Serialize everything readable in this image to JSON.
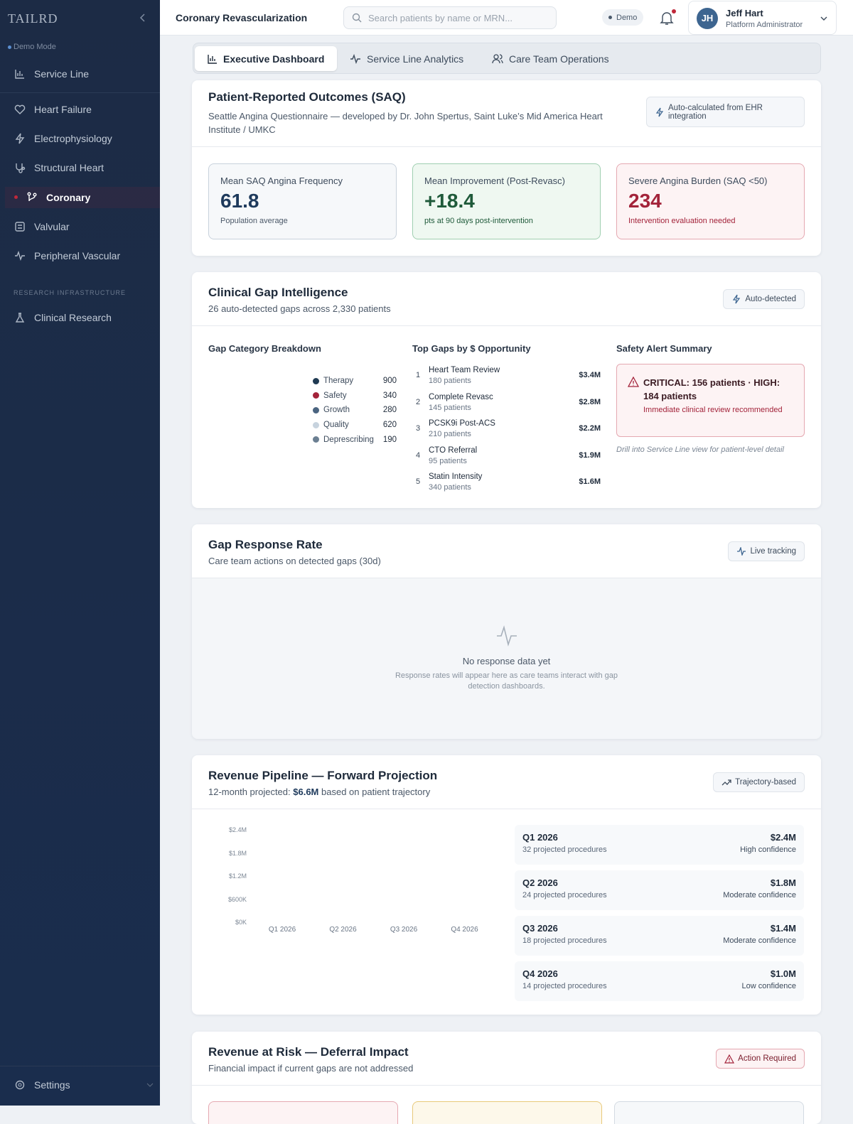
{
  "sidebar": {
    "logo": "TAILRD",
    "mode": "Demo Mode",
    "nav": [
      {
        "label": "Service Line"
      },
      {
        "label": "Heart Failure"
      },
      {
        "label": "Electrophysiology"
      },
      {
        "label": "Structural Heart"
      },
      {
        "label": "Coronary",
        "active": true
      },
      {
        "label": "Valvular"
      },
      {
        "label": "Peripheral Vascular"
      }
    ],
    "section": "RESEARCH INFRASTRUCTURE",
    "research": "Clinical Research",
    "settings": "Settings"
  },
  "header": {
    "title": "Coronary Revascularization",
    "search": "Search patients by name or MRN...",
    "demo": "Demo",
    "user": {
      "initials": "JH",
      "name": "Jeff Hart",
      "role": "Platform Administrator"
    }
  },
  "tabs": [
    "Executive Dashboard",
    "Service Line Analytics",
    "Care Team Operations"
  ],
  "saq": {
    "title": "Patient-Reported Outcomes (SAQ)",
    "subtitle": "Seattle Angina Questionnaire — developed by Dr. John Spertus, Saint Luke’s Mid America Heart Institute / UMKC",
    "badge": "Auto-calculated from EHR integration",
    "metrics": [
      {
        "label": "Mean SAQ Angina Frequency",
        "value": "61.8",
        "note": "Population average"
      },
      {
        "label": "Mean Improvement (Post-Revasc)",
        "value": "+18.4",
        "note": "pts at 90 days post-intervention"
      },
      {
        "label": "Severe Angina Burden (SAQ <50)",
        "value": "234",
        "note": "Intervention evaluation needed"
      }
    ]
  },
  "gaps": {
    "title": "Clinical Gap Intelligence",
    "subtitle": "26 auto-detected gaps across 2,330 patients",
    "badge": "Auto-detected",
    "breakdown_title": "Gap Category Breakdown",
    "breakdown": [
      {
        "name": "Therapy",
        "value": "900",
        "color": "#1f3a52"
      },
      {
        "name": "Safety",
        "value": "340",
        "color": "#a3233a"
      },
      {
        "name": "Growth",
        "value": "280",
        "color": "#4a6480"
      },
      {
        "name": "Quality",
        "value": "620",
        "color": "#c7d3de"
      },
      {
        "name": "Deprescribing",
        "value": "190",
        "color": "#6b7f92"
      }
    ],
    "top_title": "Top Gaps by $ Opportunity",
    "top": [
      {
        "rank": "1",
        "name": "Heart Team Review",
        "patients": "180 patients",
        "amount": "$3.4M"
      },
      {
        "rank": "2",
        "name": "Complete Revasc",
        "patients": "145 patients",
        "amount": "$2.8M"
      },
      {
        "rank": "3",
        "name": "PCSK9i Post-ACS",
        "patients": "210 patients",
        "amount": "$2.2M"
      },
      {
        "rank": "4",
        "name": "CTO Referral",
        "patients": "95 patients",
        "amount": "$1.9M"
      },
      {
        "rank": "5",
        "name": "Statin Intensity",
        "patients": "340 patients",
        "amount": "$1.6M"
      }
    ],
    "safety_title": "Safety Alert Summary",
    "alert": "CRITICAL: 156 patients · HIGH: 184 patients",
    "alert_note": "Immediate clinical review recommended",
    "footnote": "Drill into Service Line view for patient-level detail"
  },
  "response": {
    "title": "Gap Response Rate",
    "subtitle": "Care team actions on detected gaps (30d)",
    "badge": "Live tracking",
    "empty_title": "No response data yet",
    "empty_text": "Response rates will appear here as care teams interact with gap detection dashboards."
  },
  "pipeline": {
    "title": "Revenue Pipeline — Forward Projection",
    "subtitle_pre": "12-month projected:",
    "subtitle_value": "$6.6M",
    "subtitle_post": "based on patient trajectory",
    "badge": "Trajectory-based",
    "axis_labels": [
      "$2.4M",
      "$1.8M",
      "$1.2M",
      "$600K",
      "$0K"
    ],
    "axis_categories": [
      "Q1 2026",
      "Q2 2026",
      "Q3 2026",
      "Q4 2026"
    ],
    "quarters": [
      {
        "quarter": "Q1 2026",
        "procedures": "32 projected procedures",
        "amount": "$2.4M",
        "confidence": "High confidence"
      },
      {
        "quarter": "Q2 2026",
        "procedures": "24 projected procedures",
        "amount": "$1.8M",
        "confidence": "Moderate confidence"
      },
      {
        "quarter": "Q3 2026",
        "procedures": "18 projected procedures",
        "amount": "$1.4M",
        "confidence": "Moderate confidence"
      },
      {
        "quarter": "Q4 2026",
        "procedures": "14 projected procedures",
        "amount": "$1.0M",
        "confidence": "Low confidence"
      }
    ]
  },
  "risk": {
    "title": "Revenue at Risk — Deferral Impact",
    "subtitle": "Financial impact if current gaps are not addressed",
    "badge": "Action Required"
  }
}
